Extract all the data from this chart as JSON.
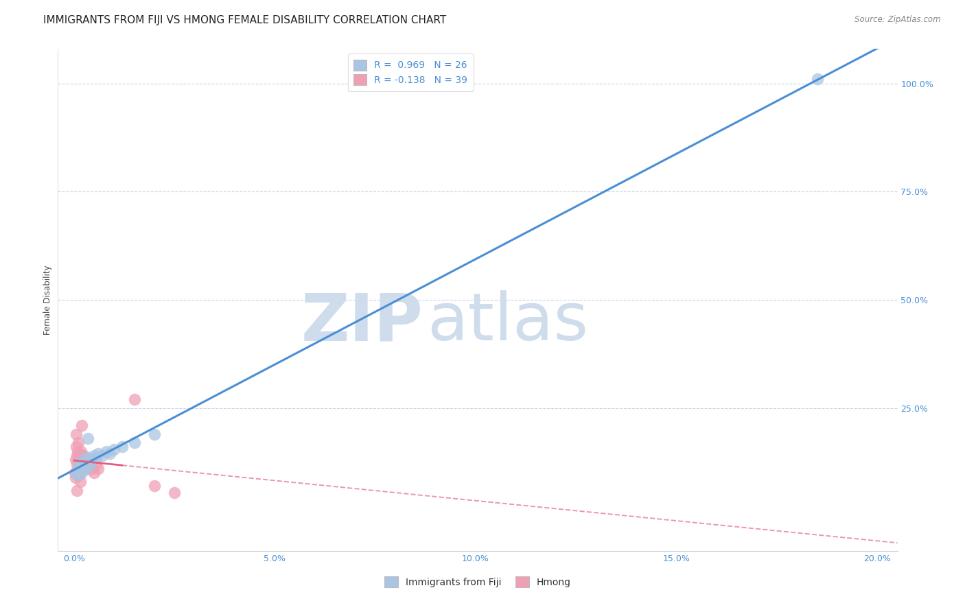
{
  "title": "IMMIGRANTS FROM FIJI VS HMONG FEMALE DISABILITY CORRELATION CHART",
  "source": "Source: ZipAtlas.com",
  "xlabel_ticks": [
    "0.0%",
    "5.0%",
    "10.0%",
    "15.0%",
    "20.0%"
  ],
  "xlabel_vals": [
    0.0,
    5.0,
    10.0,
    15.0,
    20.0
  ],
  "ylabel_ticks": [
    "100.0%",
    "75.0%",
    "50.0%",
    "25.0%"
  ],
  "ylabel_vals": [
    100.0,
    75.0,
    50.0,
    25.0
  ],
  "grid_vals": [
    100.0,
    75.0,
    50.0,
    25.0
  ],
  "xlim": [
    -0.4,
    20.5
  ],
  "ylim": [
    -8.0,
    108.0
  ],
  "fiji_R": 0.969,
  "fiji_N": 26,
  "hmong_R": -0.138,
  "hmong_N": 39,
  "fiji_color": "#aac5e2",
  "fiji_line_color": "#4a8fd4",
  "hmong_color": "#f0a0b5",
  "hmong_line_color": "#e06080",
  "fiji_scatter_x": [
    0.05,
    0.1,
    0.15,
    0.08,
    0.12,
    0.18,
    0.2,
    0.25,
    0.3,
    0.22,
    0.28,
    0.35,
    0.4,
    0.45,
    0.5,
    0.55,
    0.6,
    0.7,
    0.8,
    0.9,
    1.0,
    1.2,
    1.5,
    2.0,
    0.35,
    18.5
  ],
  "fiji_scatter_y": [
    10.0,
    11.0,
    10.5,
    9.5,
    12.0,
    11.5,
    10.0,
    12.5,
    11.0,
    13.0,
    11.5,
    13.5,
    12.0,
    13.0,
    14.0,
    13.5,
    14.5,
    14.0,
    15.0,
    14.5,
    15.5,
    16.0,
    17.0,
    19.0,
    18.0,
    101.0
  ],
  "hmong_scatter_x": [
    0.02,
    0.03,
    0.04,
    0.05,
    0.06,
    0.07,
    0.08,
    0.09,
    0.1,
    0.11,
    0.12,
    0.13,
    0.14,
    0.15,
    0.16,
    0.17,
    0.18,
    0.19,
    0.2,
    0.21,
    0.22,
    0.23,
    0.24,
    0.25,
    0.28,
    0.3,
    0.32,
    0.35,
    0.4,
    0.45,
    0.5,
    0.55,
    0.6,
    1.5,
    2.0,
    2.5,
    0.2,
    0.15,
    0.08
  ],
  "hmong_scatter_y": [
    10.0,
    13.0,
    9.0,
    16.0,
    19.0,
    14.0,
    12.0,
    15.0,
    17.0,
    11.0,
    10.0,
    9.5,
    13.0,
    12.0,
    14.0,
    13.0,
    15.0,
    12.0,
    13.0,
    11.0,
    12.0,
    13.0,
    14.0,
    13.0,
    12.0,
    13.0,
    12.0,
    11.0,
    13.0,
    11.0,
    10.0,
    12.0,
    11.0,
    27.0,
    7.0,
    5.5,
    21.0,
    8.0,
    6.0
  ],
  "watermark_zip": "ZIP",
  "watermark_atlas": "atlas",
  "watermark_color": "#cfdcec",
  "background_color": "#ffffff",
  "grid_color": "#c8d4e8",
  "title_fontsize": 11,
  "axis_label_fontsize": 8.5,
  "tick_fontsize": 9,
  "legend_fontsize": 10,
  "source_fontsize": 8.5
}
